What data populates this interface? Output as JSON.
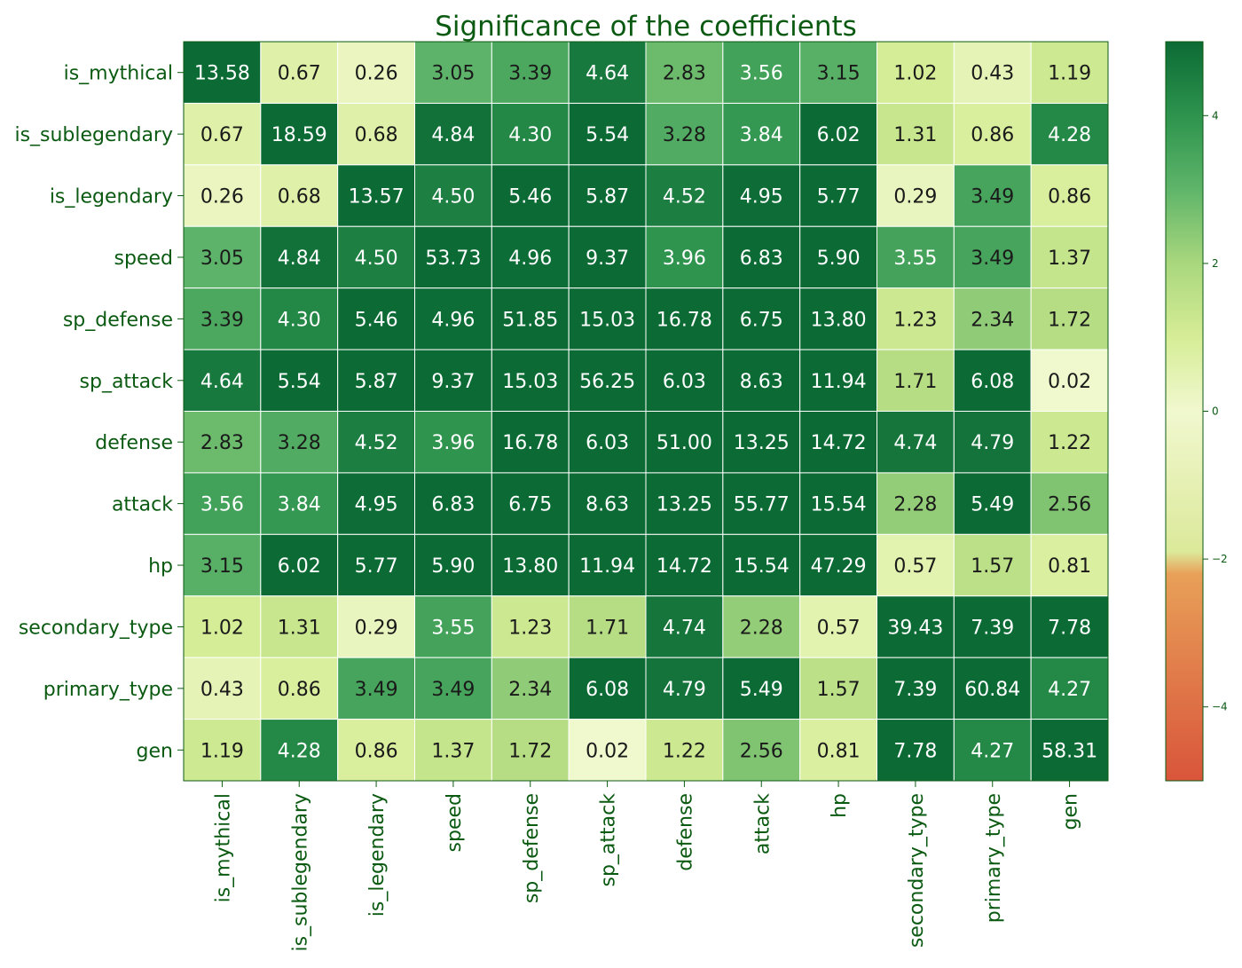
{
  "chart_data": {
    "type": "heatmap",
    "title": "Significance of the coefficients",
    "rows": [
      "is_mythical",
      "is_sublegendary",
      "is_legendary",
      "speed",
      "sp_defense",
      "sp_attack",
      "defense",
      "attack",
      "hp",
      "secondary_type",
      "primary_type",
      "gen"
    ],
    "columns": [
      "is_mythical",
      "is_sublegendary",
      "is_legendary",
      "speed",
      "sp_defense",
      "sp_attack",
      "defense",
      "attack",
      "hp",
      "secondary_type",
      "primary_type",
      "gen"
    ],
    "values": [
      [
        13.58,
        0.67,
        0.26,
        3.05,
        3.39,
        4.64,
        2.83,
        3.56,
        3.15,
        1.02,
        0.43,
        1.19
      ],
      [
        0.67,
        18.59,
        0.68,
        4.84,
        4.3,
        5.54,
        3.28,
        3.84,
        6.02,
        1.31,
        0.86,
        4.28
      ],
      [
        0.26,
        0.68,
        13.57,
        4.5,
        5.46,
        5.87,
        4.52,
        4.95,
        5.77,
        0.29,
        3.49,
        0.86
      ],
      [
        3.05,
        4.84,
        4.5,
        53.73,
        4.96,
        9.37,
        3.96,
        6.83,
        5.9,
        3.55,
        3.49,
        1.37
      ],
      [
        3.39,
        4.3,
        5.46,
        4.96,
        51.85,
        15.03,
        16.78,
        6.75,
        13.8,
        1.23,
        2.34,
        1.72
      ],
      [
        4.64,
        5.54,
        5.87,
        9.37,
        15.03,
        56.25,
        6.03,
        8.63,
        11.94,
        1.71,
        6.08,
        0.02
      ],
      [
        2.83,
        3.28,
        4.52,
        3.96,
        16.78,
        6.03,
        51.0,
        13.25,
        14.72,
        4.74,
        4.79,
        1.22
      ],
      [
        3.56,
        3.84,
        4.95,
        6.83,
        6.75,
        8.63,
        13.25,
        55.77,
        15.54,
        2.28,
        5.49,
        2.56
      ],
      [
        3.15,
        6.02,
        5.77,
        5.9,
        13.8,
        11.94,
        14.72,
        15.54,
        47.29,
        0.57,
        1.57,
        0.81
      ],
      [
        1.02,
        1.31,
        0.29,
        3.55,
        1.23,
        1.71,
        4.74,
        2.28,
        0.57,
        39.43,
        7.39,
        7.78
      ],
      [
        0.43,
        0.86,
        3.49,
        3.49,
        2.34,
        6.08,
        4.79,
        5.49,
        1.57,
        7.39,
        60.84,
        4.27
      ],
      [
        1.19,
        4.28,
        0.86,
        1.37,
        1.72,
        0.02,
        1.22,
        2.56,
        0.81,
        7.78,
        4.27,
        58.31
      ]
    ],
    "colorbar": {
      "vmin": -5,
      "vmax": 5,
      "ticks": [
        4,
        2,
        0,
        -2,
        -4
      ],
      "tick_labels": [
        "4",
        "2",
        "0",
        "−2",
        "−4"
      ]
    },
    "colormap": {
      "stops": [
        {
          "v": -5,
          "color": "#d9553b"
        },
        {
          "v": -2.2,
          "color": "#e8a058"
        },
        {
          "v": -1.9,
          "color": "#dbe99a"
        },
        {
          "v": 0,
          "color": "#f1f8cf"
        },
        {
          "v": 1,
          "color": "#d6ed96"
        },
        {
          "v": 2,
          "color": "#a9d77d"
        },
        {
          "v": 3,
          "color": "#5fb56a"
        },
        {
          "v": 4,
          "color": "#2d934d"
        },
        {
          "v": 5,
          "color": "#0c6b35"
        }
      ]
    },
    "colors": {
      "label_text": "#0b5a12",
      "cell_border": "#ffffff",
      "text_light": "#ffffff",
      "text_dark": "#1a1a1a"
    },
    "grid": false,
    "legend": "colorbar-right"
  }
}
